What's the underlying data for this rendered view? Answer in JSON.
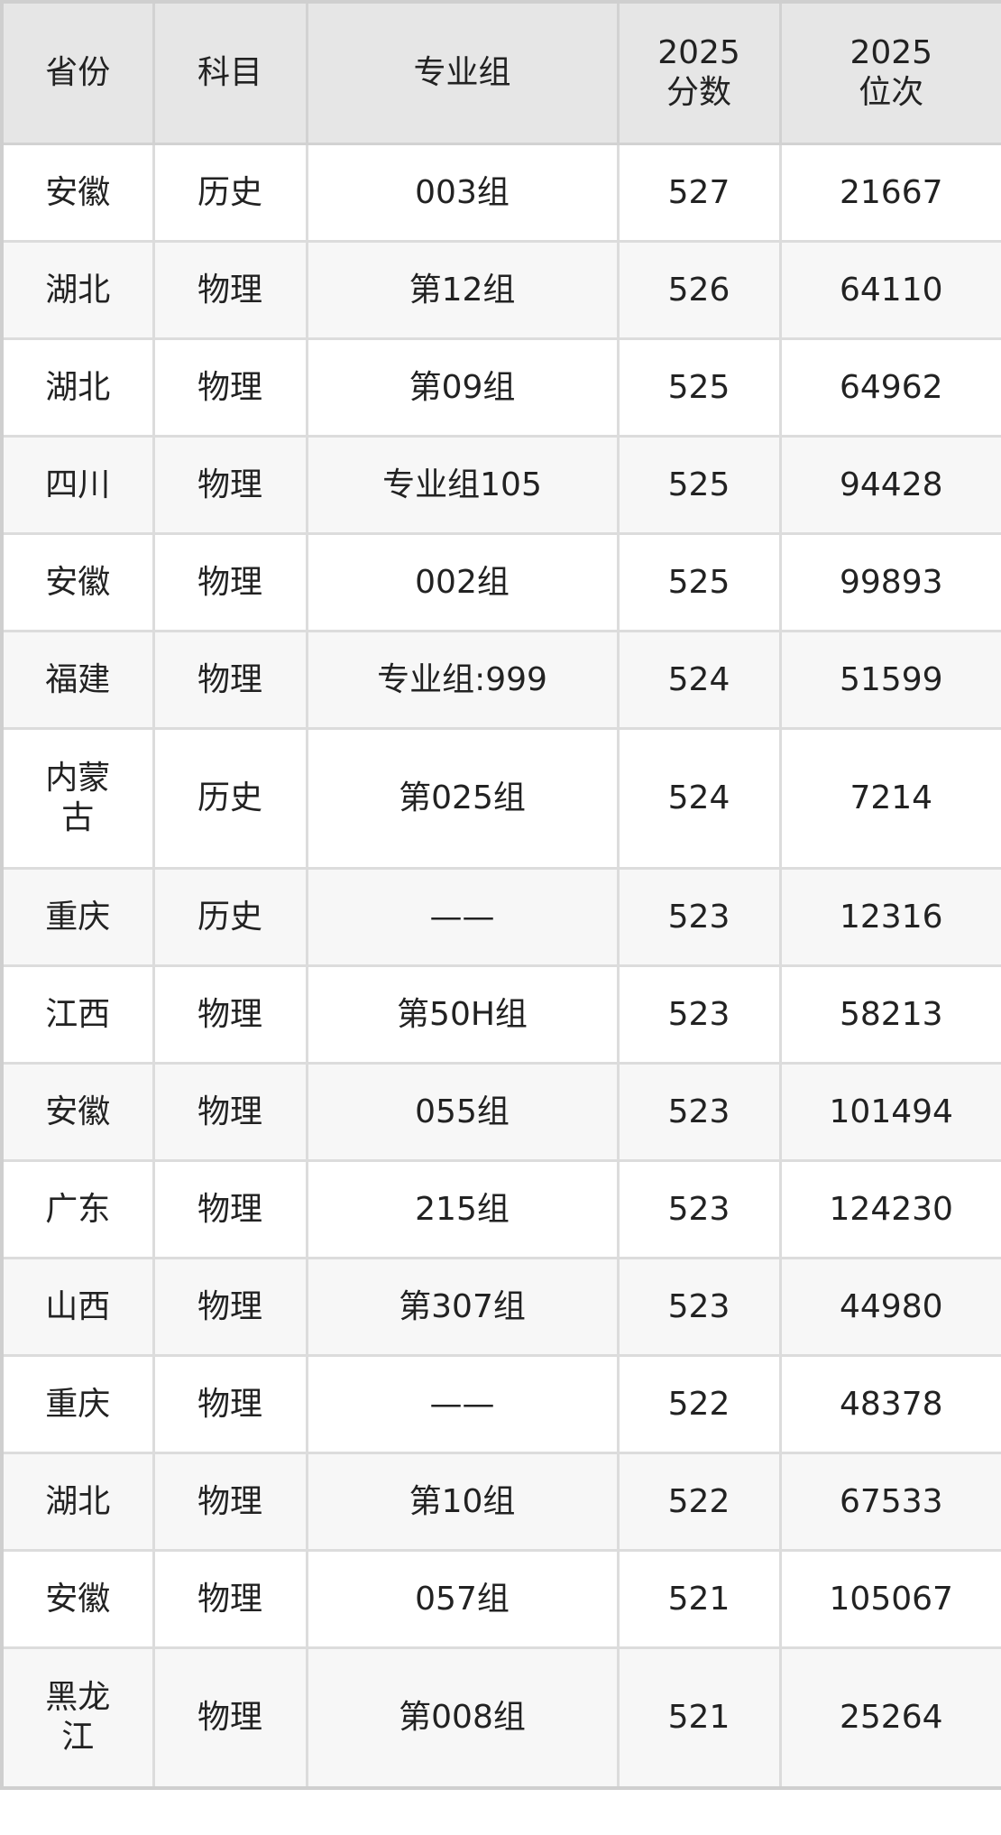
{
  "table": {
    "headers": [
      "省份",
      "科目",
      "专业组",
      "2025\n分数",
      "2025\n位次"
    ],
    "header_lines": [
      [
        "省份"
      ],
      [
        "科目"
      ],
      [
        "专业组"
      ],
      [
        "2025",
        "分数"
      ],
      [
        "2025",
        "位次"
      ]
    ],
    "rows": [
      [
        "安徽",
        "历史",
        "003组",
        "527",
        "21667"
      ],
      [
        "湖北",
        "物理",
        "第12组",
        "526",
        "64110"
      ],
      [
        "湖北",
        "物理",
        "第09组",
        "525",
        "64962"
      ],
      [
        "四川",
        "物理",
        "专业组105",
        "525",
        "94428"
      ],
      [
        "安徽",
        "物理",
        "002组",
        "525",
        "99893"
      ],
      [
        "福建",
        "物理",
        "专业组:999",
        "524",
        "51599"
      ],
      [
        "内蒙古",
        "历史",
        "第025组",
        "524",
        "7214"
      ],
      [
        "重庆",
        "历史",
        "——",
        "523",
        "12316"
      ],
      [
        "江西",
        "物理",
        "第50H组",
        "523",
        "58213"
      ],
      [
        "安徽",
        "物理",
        "055组",
        "523",
        "101494"
      ],
      [
        "广东",
        "物理",
        "215组",
        "523",
        "124230"
      ],
      [
        "山西",
        "物理",
        "第307组",
        "523",
        "44980"
      ],
      [
        "重庆",
        "物理",
        "——",
        "522",
        "48378"
      ],
      [
        "湖北",
        "物理",
        "第10组",
        "522",
        "67533"
      ],
      [
        "安徽",
        "物理",
        "057组",
        "521",
        "105067"
      ],
      [
        "黑龙江",
        "物理",
        "第008组",
        "521",
        "25264"
      ]
    ]
  },
  "colors": {
    "header_bg": "#e6e6e6",
    "row_alt_bg": "#f7f7f7",
    "border": "#dcdcdc"
  }
}
